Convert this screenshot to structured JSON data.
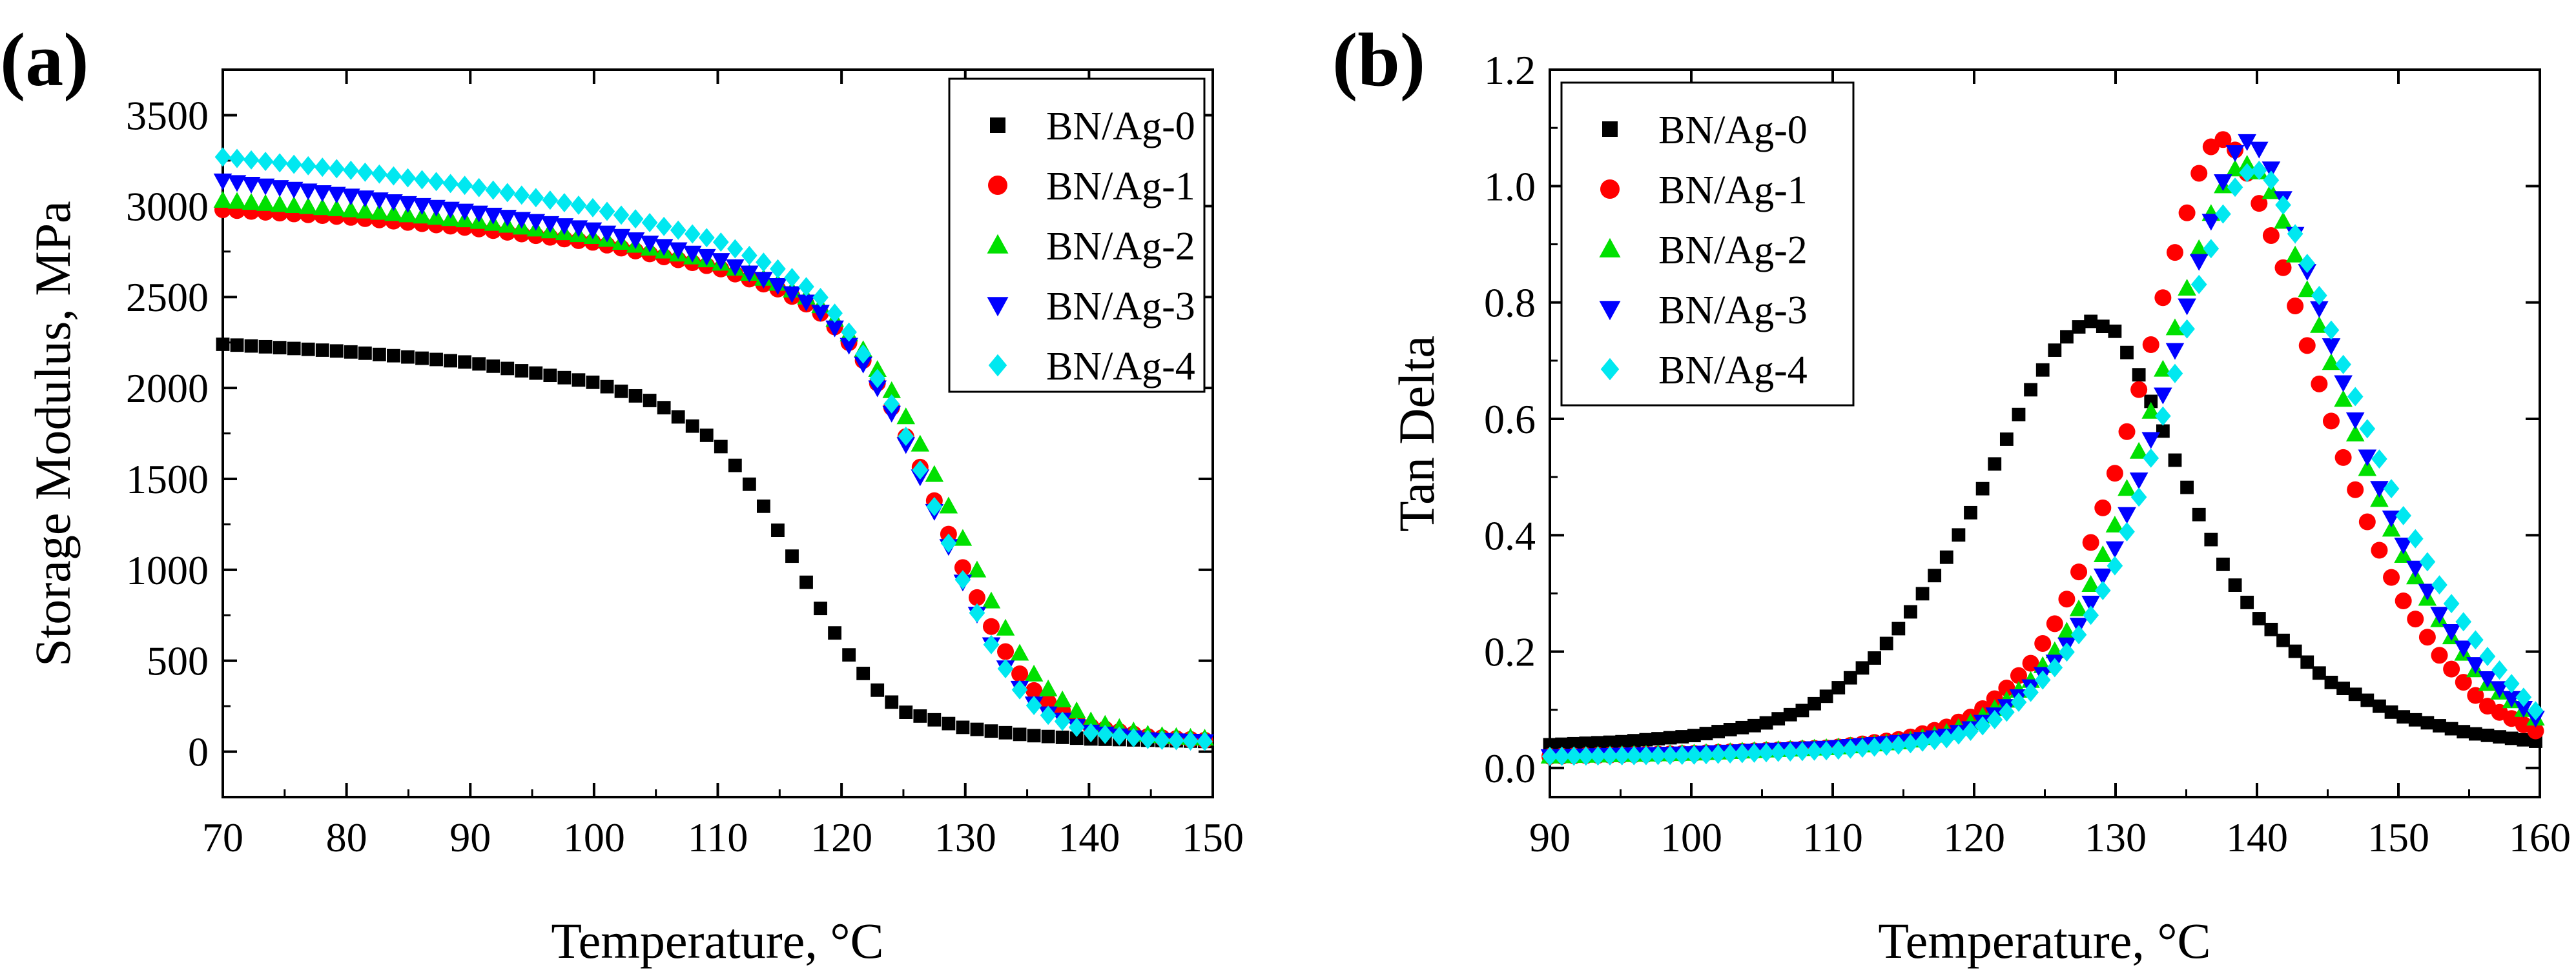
{
  "figure": {
    "panels": [
      "(a)",
      "(b)"
    ]
  },
  "colors": {
    "BN/Ag-0": "#000000",
    "BN/Ag-1": "#ff0000",
    "BN/Ag-2": "#00e000",
    "BN/Ag-3": "#0000ff",
    "BN/Ag-4": "#00e8f0"
  },
  "chart_data": [
    {
      "panel": "(a)",
      "type": "scatter",
      "title": "",
      "xlabel": "Temperature,  °C",
      "ylabel": "Storage Modulus,  MPa",
      "xlim": [
        70,
        150
      ],
      "ylim": [
        -250,
        3750
      ],
      "xticks": [
        70,
        80,
        90,
        100,
        110,
        120,
        130,
        140,
        150
      ],
      "yticks": [
        0,
        500,
        1000,
        1500,
        2000,
        2500,
        3000,
        3500
      ],
      "legend_position": "top-right",
      "grid": false,
      "series": [
        {
          "name": "BN/Ag-0",
          "marker": "square",
          "x": [
            70,
            80,
            90,
            100,
            105,
            110,
            113,
            115,
            117,
            119,
            121,
            123,
            125,
            130,
            135,
            140,
            150
          ],
          "y": [
            2240,
            2200,
            2140,
            2030,
            1920,
            1700,
            1430,
            1200,
            950,
            700,
            490,
            330,
            220,
            130,
            90,
            70,
            55
          ]
        },
        {
          "name": "BN/Ag-1",
          "marker": "circle",
          "x": [
            70,
            80,
            90,
            100,
            110,
            115,
            118,
            120,
            122,
            124,
            126,
            128,
            130,
            132,
            134,
            136,
            140,
            145,
            150
          ],
          "y": [
            2980,
            2940,
            2880,
            2800,
            2660,
            2540,
            2430,
            2300,
            2130,
            1900,
            1620,
            1300,
            980,
            700,
            460,
            300,
            140,
            80,
            60
          ]
        },
        {
          "name": "BN/Ag-2",
          "marker": "triangle-up",
          "x": [
            70,
            80,
            90,
            100,
            110,
            115,
            118,
            120,
            122,
            124,
            126,
            128,
            130,
            132,
            134,
            136,
            140,
            145,
            150
          ],
          "y": [
            3030,
            2980,
            2920,
            2830,
            2690,
            2570,
            2470,
            2340,
            2190,
            1990,
            1740,
            1450,
            1140,
            840,
            580,
            380,
            170,
            90,
            70
          ]
        },
        {
          "name": "BN/Ag-3",
          "marker": "triangle-down",
          "x": [
            70,
            80,
            90,
            100,
            110,
            115,
            118,
            120,
            122,
            124,
            126,
            128,
            130,
            132,
            134,
            136,
            140,
            145,
            150
          ],
          "y": [
            3140,
            3060,
            2970,
            2870,
            2710,
            2560,
            2440,
            2290,
            2110,
            1870,
            1570,
            1240,
            900,
            600,
            380,
            230,
            110,
            65,
            55
          ]
        },
        {
          "name": "BN/Ag-4",
          "marker": "diamond",
          "x": [
            70,
            80,
            90,
            100,
            110,
            115,
            118,
            120,
            122,
            124,
            126,
            128,
            130,
            132,
            134,
            136,
            140,
            145,
            150
          ],
          "y": [
            3270,
            3200,
            3110,
            2990,
            2810,
            2650,
            2520,
            2370,
            2160,
            1920,
            1610,
            1260,
            910,
            600,
            370,
            220,
            105,
            65,
            55
          ]
        }
      ]
    },
    {
      "panel": "(b)",
      "type": "scatter",
      "title": "",
      "xlabel": "Temperature,  °C",
      "ylabel": "Tan Delta",
      "xlim": [
        90,
        160
      ],
      "ylim": [
        -0.05,
        1.2
      ],
      "xticks": [
        90,
        100,
        110,
        120,
        130,
        140,
        150,
        160
      ],
      "yticks": [
        0.0,
        0.2,
        0.4,
        0.6,
        0.8,
        1.0,
        1.2
      ],
      "legend_position": "top-left",
      "grid": false,
      "series": [
        {
          "name": "BN/Ag-0",
          "marker": "square",
          "x": [
            90,
            95,
            100,
            105,
            108,
            110,
            113,
            115,
            118,
            120,
            122,
            124,
            126,
            128,
            130,
            132,
            134,
            136,
            138,
            140,
            145,
            150,
            155,
            160
          ],
          "y": [
            0.04,
            0.045,
            0.055,
            0.075,
            0.1,
            0.13,
            0.19,
            0.25,
            0.36,
            0.45,
            0.55,
            0.65,
            0.73,
            0.77,
            0.75,
            0.66,
            0.54,
            0.43,
            0.33,
            0.26,
            0.15,
            0.09,
            0.06,
            0.045
          ]
        },
        {
          "name": "BN/Ag-1",
          "marker": "circle",
          "x": [
            90,
            100,
            110,
            115,
            118,
            120,
            122,
            124,
            126,
            128,
            130,
            132,
            134,
            135,
            136,
            137,
            138,
            139,
            140,
            142,
            144,
            146,
            148,
            150,
            153,
            156,
            160
          ],
          "y": [
            0.02,
            0.025,
            0.035,
            0.05,
            0.07,
            0.09,
            0.13,
            0.18,
            0.26,
            0.37,
            0.51,
            0.68,
            0.87,
            0.95,
            1.03,
            1.08,
            1.08,
            1.04,
            0.98,
            0.85,
            0.69,
            0.54,
            0.41,
            0.3,
            0.19,
            0.11,
            0.06
          ]
        },
        {
          "name": "BN/Ag-2",
          "marker": "triangle-up",
          "x": [
            90,
            100,
            110,
            115,
            118,
            120,
            122,
            124,
            126,
            128,
            130,
            132,
            134,
            136,
            137,
            138,
            139,
            140,
            141,
            142,
            144,
            146,
            148,
            150,
            153,
            156,
            160
          ],
          "y": [
            0.02,
            0.025,
            0.035,
            0.045,
            0.06,
            0.08,
            0.11,
            0.15,
            0.21,
            0.3,
            0.42,
            0.57,
            0.74,
            0.9,
            0.97,
            1.02,
            1.04,
            1.03,
            0.99,
            0.93,
            0.79,
            0.64,
            0.5,
            0.38,
            0.25,
            0.15,
            0.08
          ]
        },
        {
          "name": "BN/Ag-3",
          "marker": "triangle-down",
          "x": [
            90,
            100,
            110,
            115,
            118,
            120,
            122,
            124,
            126,
            128,
            130,
            132,
            134,
            136,
            138,
            139,
            140,
            141,
            142,
            144,
            146,
            148,
            150,
            153,
            156,
            160
          ],
          "y": [
            0.02,
            0.025,
            0.035,
            0.045,
            0.055,
            0.07,
            0.1,
            0.14,
            0.19,
            0.27,
            0.38,
            0.52,
            0.7,
            0.88,
            1.04,
            1.08,
            1.07,
            1.03,
            0.97,
            0.82,
            0.67,
            0.52,
            0.4,
            0.26,
            0.16,
            0.08
          ]
        },
        {
          "name": "BN/Ag-4",
          "marker": "diamond",
          "x": [
            90,
            100,
            110,
            115,
            118,
            120,
            122,
            124,
            126,
            128,
            130,
            132,
            134,
            136,
            138,
            139,
            140,
            141,
            142,
            144,
            146,
            148,
            150,
            153,
            156,
            160
          ],
          "y": [
            0.02,
            0.022,
            0.03,
            0.04,
            0.05,
            0.065,
            0.09,
            0.13,
            0.18,
            0.25,
            0.35,
            0.49,
            0.66,
            0.84,
            0.98,
            1.02,
            1.03,
            1.01,
            0.96,
            0.84,
            0.7,
            0.57,
            0.45,
            0.31,
            0.2,
            0.09
          ]
        }
      ]
    }
  ]
}
